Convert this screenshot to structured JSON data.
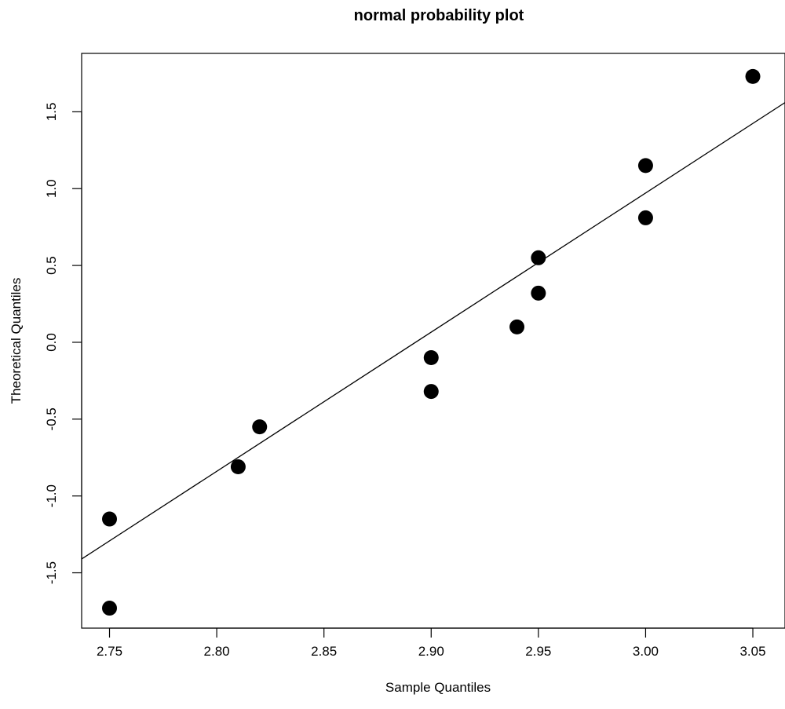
{
  "chart_data": {
    "type": "scatter",
    "title": "normal probability plot",
    "xlabel": "Sample Quantiles",
    "ylabel": "Theoretical Quantiles",
    "xlim": [
      2.737,
      3.065
    ],
    "ylim": [
      -1.86,
      1.88
    ],
    "x_ticks": [
      2.75,
      2.8,
      2.85,
      2.9,
      2.95,
      3.0,
      3.05
    ],
    "x_tick_labels": [
      "2.75",
      "2.80",
      "2.85",
      "2.90",
      "2.95",
      "3.00",
      "3.05"
    ],
    "y_ticks": [
      -1.5,
      -1.0,
      -0.5,
      0.0,
      0.5,
      1.0,
      1.5
    ],
    "y_tick_labels": [
      "-1.5",
      "-1.0",
      "-0.5",
      "0.0",
      "0.5",
      "1.0",
      "1.5"
    ],
    "grid": false,
    "point_color": "#000000",
    "line_color": "#000000",
    "points": [
      {
        "x": 2.75,
        "y": -1.73
      },
      {
        "x": 2.75,
        "y": -1.15
      },
      {
        "x": 2.81,
        "y": -0.81
      },
      {
        "x": 2.82,
        "y": -0.55
      },
      {
        "x": 2.9,
        "y": -0.32
      },
      {
        "x": 2.9,
        "y": -0.1
      },
      {
        "x": 2.94,
        "y": 0.1
      },
      {
        "x": 2.95,
        "y": 0.32
      },
      {
        "x": 2.95,
        "y": 0.55
      },
      {
        "x": 3.0,
        "y": 0.81
      },
      {
        "x": 3.0,
        "y": 1.15
      },
      {
        "x": 3.05,
        "y": 1.73
      }
    ],
    "reference_line": {
      "x1": 2.737,
      "y1": -1.41,
      "x2": 3.065,
      "y2": 1.56
    }
  }
}
